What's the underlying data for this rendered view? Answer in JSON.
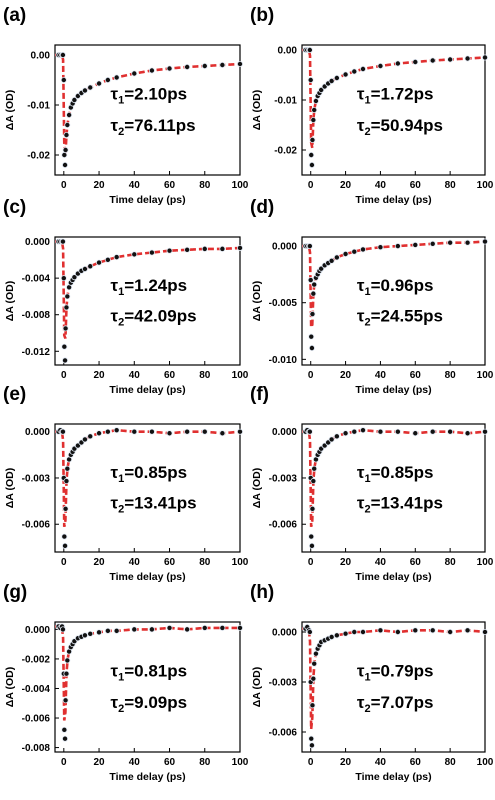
{
  "chart_data": [
    {
      "type": "scatter",
      "panel_label": "(a)",
      "xlabel": "Time delay (ps)",
      "ylabel": "ΔA (OD)",
      "xlim": [
        -5,
        100
      ],
      "ylim": [
        -0.024,
        0.002
      ],
      "x_ticks": [
        0,
        20,
        40,
        60,
        80,
        100
      ],
      "y_ticks": [
        0.0,
        -0.01,
        -0.02
      ],
      "y_tick_labels": [
        "0.00",
        "-0.01",
        "-0.02"
      ],
      "annotation": {
        "tau1": "1=2.10ps",
        "tau2": "2=76.11ps"
      },
      "x": [
        -3,
        -2,
        -1,
        -0.5,
        0,
        0.3,
        0.7,
        1,
        1.5,
        2,
        3,
        4,
        5,
        6,
        8,
        10,
        12,
        15,
        20,
        25,
        30,
        40,
        50,
        60,
        70,
        80,
        90,
        100
      ],
      "y": [
        0.0,
        0.0,
        0.0,
        0.0,
        -0.005,
        -0.02,
        -0.022,
        -0.019,
        -0.016,
        -0.014,
        -0.012,
        -0.0105,
        -0.0097,
        -0.009,
        -0.0082,
        -0.0076,
        -0.0071,
        -0.0065,
        -0.0057,
        -0.005,
        -0.0045,
        -0.0037,
        -0.0031,
        -0.0027,
        -0.0024,
        -0.0022,
        -0.002,
        -0.0018
      ]
    },
    {
      "type": "scatter",
      "panel_label": "(b)",
      "xlabel": "Time delay (ps)",
      "ylabel": "ΔA (OD)",
      "xlim": [
        -5,
        100
      ],
      "ylim": [
        -0.025,
        0.001
      ],
      "x_ticks": [
        0,
        20,
        40,
        60,
        80,
        100
      ],
      "y_ticks": [
        0.0,
        -0.01,
        -0.02
      ],
      "y_tick_labels": [
        "0.00",
        "-0.01",
        "-0.02"
      ],
      "annotation": {
        "tau1": "1=1.72ps",
        "tau2": "2=50.94ps"
      },
      "x": [
        -3,
        -2,
        -1,
        -0.5,
        0,
        0.3,
        0.7,
        1,
        1.5,
        2,
        3,
        4,
        5,
        6,
        8,
        10,
        12,
        15,
        20,
        25,
        30,
        40,
        50,
        60,
        70,
        80,
        90,
        100
      ],
      "y": [
        0.0,
        0.0,
        0.0,
        0.0,
        -0.006,
        -0.021,
        -0.023,
        -0.018,
        -0.014,
        -0.012,
        -0.0102,
        -0.0092,
        -0.0086,
        -0.008,
        -0.0073,
        -0.0067,
        -0.0062,
        -0.0056,
        -0.0049,
        -0.0043,
        -0.0038,
        -0.0032,
        -0.0027,
        -0.0024,
        -0.0021,
        -0.0019,
        -0.0017,
        -0.0015
      ]
    },
    {
      "type": "scatter",
      "panel_label": "(c)",
      "xlabel": "Time delay (ps)",
      "ylabel": "ΔA (OD)",
      "xlim": [
        -5,
        100
      ],
      "ylim": [
        -0.0135,
        0.0005
      ],
      "x_ticks": [
        0,
        20,
        40,
        60,
        80,
        100
      ],
      "y_ticks": [
        0.0,
        -0.004,
        -0.008,
        -0.012
      ],
      "y_tick_labels": [
        "0.000",
        "-0.004",
        "-0.008",
        "-0.012"
      ],
      "annotation": {
        "tau1": "1=1.24ps",
        "tau2": "2=42.09ps"
      },
      "x": [
        -3,
        -2,
        -1,
        -0.5,
        0,
        0.3,
        0.7,
        1,
        1.5,
        2,
        3,
        4,
        5,
        6,
        8,
        10,
        12,
        15,
        20,
        25,
        30,
        40,
        50,
        60,
        70,
        80,
        90,
        100
      ],
      "y": [
        0.0,
        0.0,
        0.0,
        0.0,
        -0.004,
        -0.0115,
        -0.013,
        -0.0095,
        -0.0072,
        -0.006,
        -0.005,
        -0.0045,
        -0.0042,
        -0.0039,
        -0.0035,
        -0.0032,
        -0.003,
        -0.0027,
        -0.0023,
        -0.002,
        -0.0017,
        -0.0014,
        -0.0012,
        -0.001,
        -0.0009,
        -0.0008,
        -0.0008,
        -0.0007
      ]
    },
    {
      "type": "scatter",
      "panel_label": "(d)",
      "xlabel": "Time delay (ps)",
      "ylabel": "ΔA (OD)",
      "xlim": [
        -5,
        100
      ],
      "ylim": [
        -0.0105,
        0.0008
      ],
      "x_ticks": [
        0,
        20,
        40,
        60,
        80,
        100
      ],
      "y_ticks": [
        0.0,
        -0.005,
        -0.01
      ],
      "y_tick_labels": [
        "0.000",
        "-0.005",
        "-0.010"
      ],
      "annotation": {
        "tau1": "1=0.96ps",
        "tau2": "2=24.55ps"
      },
      "x": [
        -3,
        -2,
        -1,
        -0.5,
        0,
        0.3,
        0.7,
        1,
        1.5,
        2,
        3,
        4,
        5,
        6,
        8,
        10,
        12,
        15,
        20,
        25,
        30,
        40,
        50,
        60,
        70,
        80,
        90,
        100
      ],
      "y": [
        0.0,
        0.0,
        0.0,
        0.0,
        -0.003,
        -0.008,
        -0.009,
        -0.006,
        -0.0042,
        -0.0034,
        -0.0028,
        -0.0025,
        -0.0022,
        -0.002,
        -0.0017,
        -0.0015,
        -0.0013,
        -0.001,
        -0.0007,
        -0.0005,
        -0.0003,
        -0.0001,
        0.0,
        0.0001,
        0.0002,
        0.0003,
        0.0003,
        0.0004
      ]
    },
    {
      "type": "scatter",
      "panel_label": "(e)",
      "xlabel": "Time delay (ps)",
      "ylabel": "ΔA (OD)",
      "xlim": [
        -5,
        100
      ],
      "ylim": [
        -0.0078,
        0.0005
      ],
      "x_ticks": [
        0,
        20,
        40,
        60,
        80,
        100
      ],
      "y_ticks": [
        0.0,
        -0.003,
        -0.006
      ],
      "y_tick_labels": [
        "0.000",
        "-0.003",
        "-0.006"
      ],
      "annotation": {
        "tau1": "1=0.85ps",
        "tau2": "2=13.41ps"
      },
      "x": [
        -3,
        -2,
        -1,
        -0.5,
        0,
        0.3,
        0.7,
        1,
        1.5,
        2,
        3,
        4,
        5,
        6,
        8,
        10,
        12,
        15,
        20,
        25,
        30,
        40,
        50,
        60,
        70,
        80,
        90,
        100
      ],
      "y": [
        0.0,
        0.0001,
        0.0,
        0.0,
        -0.003,
        -0.0068,
        -0.0074,
        -0.005,
        -0.0032,
        -0.0024,
        -0.0018,
        -0.0015,
        -0.0013,
        -0.0011,
        -0.0009,
        -0.0007,
        -0.0005,
        -0.0003,
        -0.0001,
        0.0,
        0.0001,
        0.0,
        0.0,
        -0.0001,
        0.0,
        0.0,
        -0.0001,
        0.0
      ]
    },
    {
      "type": "scatter",
      "panel_label": "(f)",
      "xlabel": "Time delay (ps)",
      "ylabel": "ΔA (OD)",
      "xlim": [
        -5,
        100
      ],
      "ylim": [
        -0.0078,
        0.0005
      ],
      "x_ticks": [
        0,
        20,
        40,
        60,
        80,
        100
      ],
      "y_ticks": [
        0.0,
        -0.003,
        -0.006
      ],
      "y_tick_labels": [
        "0.000",
        "-0.003",
        "-0.006"
      ],
      "annotation": {
        "tau1": "1=0.85ps",
        "tau2": "2=13.41ps"
      },
      "x": [
        -3,
        -2,
        -1,
        -0.5,
        0,
        0.3,
        0.7,
        1,
        1.5,
        2,
        3,
        4,
        5,
        6,
        8,
        10,
        12,
        15,
        20,
        25,
        30,
        40,
        50,
        60,
        70,
        80,
        90,
        100
      ],
      "y": [
        0.0,
        0.0001,
        0.0,
        0.0,
        -0.003,
        -0.0068,
        -0.0074,
        -0.005,
        -0.0032,
        -0.0024,
        -0.0018,
        -0.0015,
        -0.0013,
        -0.0011,
        -0.0009,
        -0.0007,
        -0.0005,
        -0.0003,
        -0.0001,
        0.0,
        0.0001,
        0.0,
        0.0,
        -0.0001,
        0.0,
        0.0,
        -0.0001,
        0.0
      ]
    },
    {
      "type": "scatter",
      "panel_label": "(g)",
      "xlabel": "Time delay (ps)",
      "ylabel": "ΔA (OD)",
      "xlim": [
        -5,
        100
      ],
      "ylim": [
        -0.0083,
        0.0005
      ],
      "x_ticks": [
        0,
        20,
        40,
        60,
        80,
        100
      ],
      "y_ticks": [
        0.0,
        -0.002,
        -0.004,
        -0.006,
        -0.008
      ],
      "y_tick_labels": [
        "0.000",
        "-0.002",
        "-0.004",
        "-0.006",
        "-0.008"
      ],
      "annotation": {
        "tau1": "1=0.81ps",
        "tau2": "2=9.09ps"
      },
      "x": [
        -3,
        -2,
        -1,
        -0.5,
        0,
        0.3,
        0.7,
        1,
        1.5,
        2,
        3,
        4,
        5,
        6,
        8,
        10,
        12,
        15,
        20,
        25,
        30,
        40,
        50,
        60,
        70,
        80,
        90,
        100
      ],
      "y": [
        0.0002,
        0.0001,
        0.0002,
        0.0,
        -0.003,
        -0.0068,
        -0.0074,
        -0.0048,
        -0.003,
        -0.0021,
        -0.0015,
        -0.0012,
        -0.001,
        -0.0008,
        -0.0006,
        -0.0005,
        -0.0004,
        -0.0003,
        -0.0002,
        -0.0001,
        -0.0001,
        0.0,
        0.0,
        0.0001,
        0.0,
        0.0001,
        0.0001,
        0.0001
      ]
    },
    {
      "type": "scatter",
      "panel_label": "(h)",
      "xlabel": "Time delay (ps)",
      "ylabel": "ΔA (OD)",
      "xlim": [
        -5,
        100
      ],
      "ylim": [
        -0.0072,
        0.0006
      ],
      "x_ticks": [
        0,
        20,
        40,
        60,
        80,
        100
      ],
      "y_ticks": [
        0.0,
        -0.003,
        -0.006
      ],
      "y_tick_labels": [
        "0.000",
        "-0.003",
        "-0.006"
      ],
      "annotation": {
        "tau1": "1=0.79ps",
        "tau2": "2=7.07ps"
      },
      "x": [
        -3,
        -2,
        -1,
        -0.5,
        0,
        0.3,
        0.7,
        1,
        1.5,
        2,
        3,
        4,
        5,
        6,
        8,
        10,
        12,
        15,
        20,
        25,
        30,
        40,
        50,
        60,
        70,
        80,
        90,
        100
      ],
      "y": [
        0.0002,
        0.0003,
        0.0001,
        0.0,
        -0.003,
        -0.0064,
        -0.0068,
        -0.0044,
        -0.0028,
        -0.0019,
        -0.0013,
        -0.001,
        -0.0008,
        -0.0006,
        -0.0005,
        -0.0004,
        -0.0003,
        -0.0002,
        -0.0001,
        0.0,
        0.0,
        0.0001,
        0.0,
        0.0001,
        0.0001,
        0.0,
        0.0001,
        0.0
      ]
    }
  ],
  "style": {
    "marker_color": "#111111",
    "marker_edge": "#dfe7f2",
    "fit_color": "#e03030",
    "axis_color": "#000000"
  }
}
